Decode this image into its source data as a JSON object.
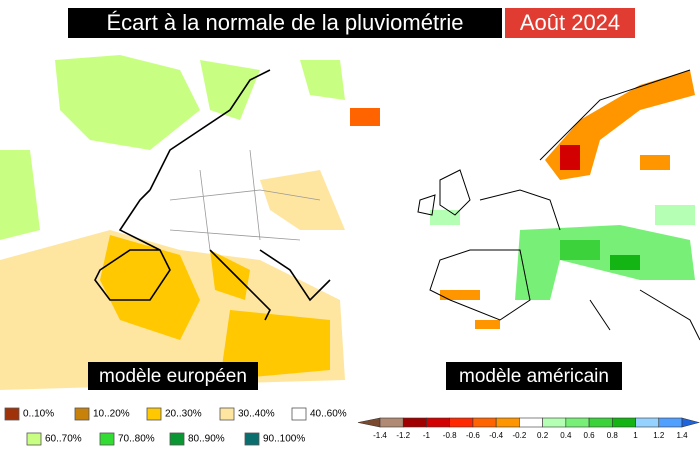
{
  "header": {
    "title": "Écart à la normale de la pluviométrie",
    "period": "Août 2024"
  },
  "panels": [
    {
      "label": "modèle européen"
    },
    {
      "label": "modèle américain"
    }
  ],
  "legend_left": [
    {
      "label": "0..10%",
      "color": "#a0320a"
    },
    {
      "label": "10..20%",
      "color": "#c8820a"
    },
    {
      "label": "20..30%",
      "color": "#ffc800"
    },
    {
      "label": "30..40%",
      "color": "#ffe6a0"
    },
    {
      "label": "40..60%",
      "color": "#ffffff"
    },
    {
      "label": "60..70%",
      "color": "#c8ff82"
    },
    {
      "label": "70..80%",
      "color": "#32dc32"
    },
    {
      "label": "80..90%",
      "color": "#0a9632"
    },
    {
      "label": "90..100%",
      "color": "#0a6e6e"
    }
  ],
  "colorbar_ticks": [
    "-1.4",
    "-1.2",
    "-1",
    "-0.8",
    "-0.6",
    "-0.4",
    "-0.2",
    "0.2",
    "0.4",
    "0.6",
    "0.8",
    "1",
    "1.2",
    "1.4"
  ]
}
